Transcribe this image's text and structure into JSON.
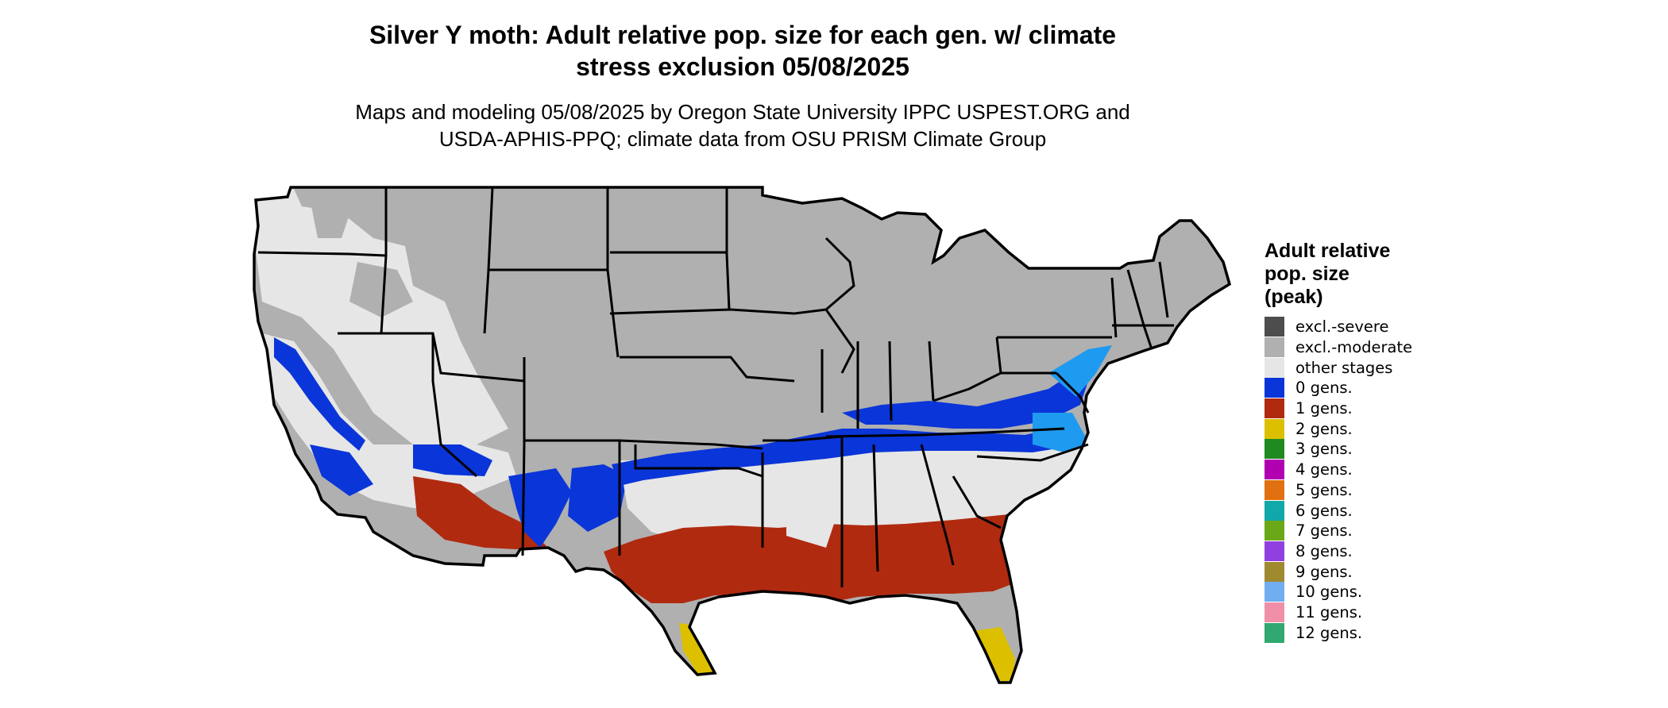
{
  "title": "Silver Y moth: Adult relative pop. size for each gen. w/ climate\nstress exclusion 05/08/2025",
  "subtitle": "Maps and modeling 05/08/2025 by Oregon State University IPPC USPEST.ORG and\nUSDA-APHIS-PPQ; climate data from OSU PRISM Climate Group",
  "legend": {
    "title": "Adult relative\npop. size\n(peak)",
    "items": [
      {
        "label": "excl.-severe",
        "color": "#4d4d4d"
      },
      {
        "label": "excl.-moderate",
        "color": "#b0b0b0"
      },
      {
        "label": "other stages",
        "color": "#e6e6e6"
      },
      {
        "label": "0 gens.",
        "color": "#0a35d8"
      },
      {
        "label": "1 gens.",
        "color": "#b02a10"
      },
      {
        "label": "2 gens.",
        "color": "#dcc000"
      },
      {
        "label": "3 gens.",
        "color": "#1f8a1f"
      },
      {
        "label": "4 gens.",
        "color": "#b000b0"
      },
      {
        "label": "5 gens.",
        "color": "#e07010"
      },
      {
        "label": "6 gens.",
        "color": "#10a8a8"
      },
      {
        "label": "7 gens.",
        "color": "#6aa818"
      },
      {
        "label": "8 gens.",
        "color": "#9040e0"
      },
      {
        "label": "9 gens.",
        "color": "#a08a30"
      },
      {
        "label": "10 gens.",
        "color": "#70aef0"
      },
      {
        "label": "11 gens.",
        "color": "#f090a8"
      },
      {
        "label": "12 gens.",
        "color": "#30a870"
      }
    ]
  }
}
